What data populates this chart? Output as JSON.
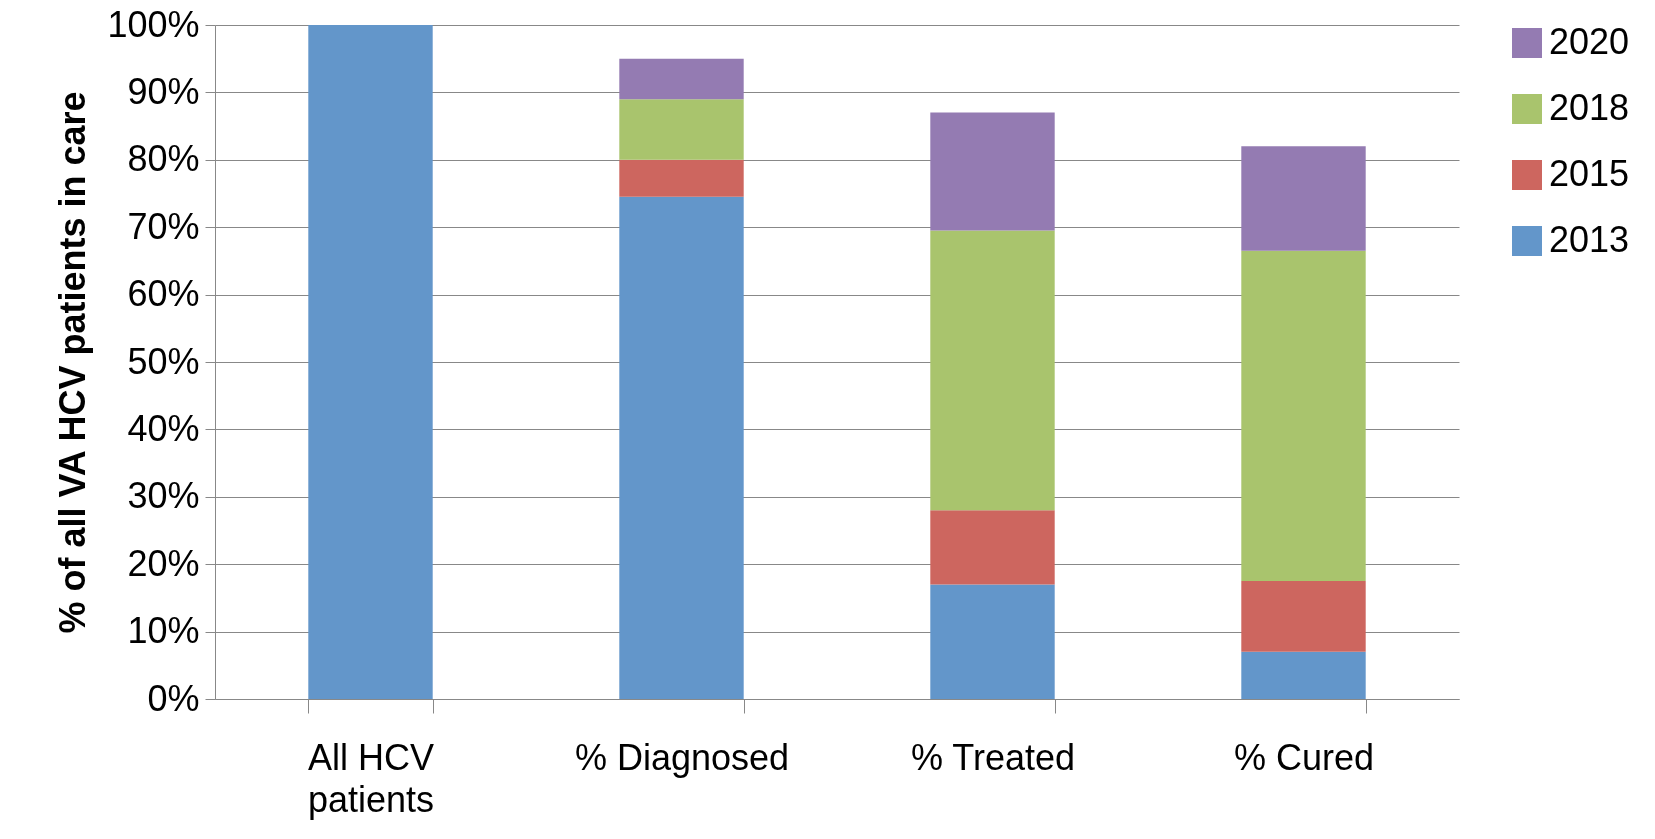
{
  "chart_data": {
    "type": "bar",
    "stacked": true,
    "ylabel": "% of all VA HCV patients in care",
    "categories": [
      "All HCV patients",
      "% Diagnosed",
      "% Treated",
      "% Cured"
    ],
    "series": [
      {
        "name": "2013",
        "color": "#6396ca",
        "values": [
          100,
          74.5,
          17,
          7
        ]
      },
      {
        "name": "2015",
        "color": "#cd665f",
        "values": [
          null,
          5.5,
          11,
          10.5
        ]
      },
      {
        "name": "2018",
        "color": "#a9c46d",
        "values": [
          null,
          9,
          41.5,
          49
        ]
      },
      {
        "name": "2020",
        "color": "#947bb2",
        "values": [
          null,
          6,
          17.5,
          15.5
        ]
      }
    ],
    "ylim": [
      0,
      100
    ],
    "yticks": [
      {
        "value": 0,
        "label": "0%"
      },
      {
        "value": 10,
        "label": "10%"
      },
      {
        "value": 20,
        "label": "20%"
      },
      {
        "value": 30,
        "label": "30%"
      },
      {
        "value": 40,
        "label": "40%"
      },
      {
        "value": 50,
        "label": "50%"
      },
      {
        "value": 60,
        "label": "60%"
      },
      {
        "value": 70,
        "label": "70%"
      },
      {
        "value": 80,
        "label": "80%"
      },
      {
        "value": 90,
        "label": "90%"
      },
      {
        "value": 100,
        "label": "100%"
      }
    ],
    "grid": "y",
    "legend": "right"
  }
}
